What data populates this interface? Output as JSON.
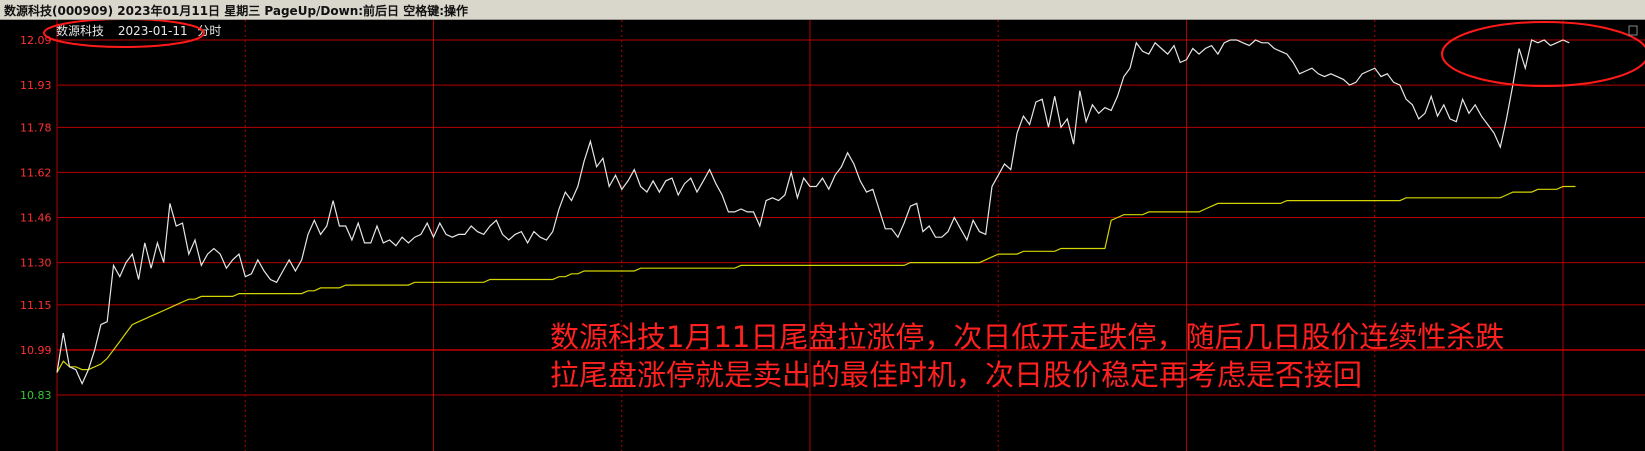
{
  "window": {
    "title": "数源科技(000909)  2023年01月11日 星期三 PageUp/Down:前后日 空格键:操作"
  },
  "chart_header": {
    "stock_name": "数源科技",
    "date": "2023-01-11",
    "mode": "分时"
  },
  "colors": {
    "price_line": "#e6e6e6",
    "avg_line": "#d4d400",
    "grid": "#b30000",
    "up_label": "#ff3232",
    "down_label": "#32c832",
    "annotation": "#ff2020",
    "circle": "#ff1a1a"
  },
  "annotation": {
    "line1": "数源科技1月11日尾盘拉涨停，次日低开走跌停，随后几日股价连续性杀跌",
    "line2": "拉尾盘涨停就是卖出的最佳时机，次日股价稳定再考虑是否接回"
  },
  "chart_data": {
    "type": "line",
    "title": "数源科技  2023-01-11 分时",
    "ylim": [
      10.68,
      12.09
    ],
    "prev_close": 10.99,
    "y_ticks": [
      12.09,
      11.93,
      11.78,
      11.62,
      11.46,
      11.3,
      11.15,
      10.99,
      10.83
    ],
    "y_tick_labels": [
      "12.09",
      "11.93",
      "11.78",
      "11.62",
      "11.46",
      "11.30",
      "11.15",
      "10.99",
      "10.83"
    ],
    "x_range": [
      0,
      240
    ],
    "grid": true,
    "series": [
      {
        "values": [
          10.91,
          11.05,
          10.93,
          10.92,
          10.87,
          10.92,
          10.99,
          11.08,
          11.09,
          11.29,
          11.25,
          11.3,
          11.33,
          11.24,
          11.37,
          11.28,
          11.37,
          11.3,
          11.51,
          11.43,
          11.44,
          11.33,
          11.38,
          11.29,
          11.33,
          11.35,
          11.33,
          11.28,
          11.31,
          11.33,
          11.25,
          11.26,
          11.31,
          11.27,
          11.24,
          11.23,
          11.27,
          11.31,
          11.27,
          11.31,
          11.4,
          11.45,
          11.4,
          11.43,
          11.52,
          11.43,
          11.43,
          11.38,
          11.44,
          11.37,
          11.37,
          11.43,
          11.37,
          11.38,
          11.36,
          11.39,
          11.37,
          11.39,
          11.4,
          11.44,
          11.39,
          11.44,
          11.4,
          11.39,
          11.4,
          11.4,
          11.43,
          11.41,
          11.4,
          11.43,
          11.45,
          11.4,
          11.38,
          11.4,
          11.41,
          11.37,
          11.41,
          11.39,
          11.38,
          11.41,
          11.49,
          11.55,
          11.52,
          11.57,
          11.66,
          11.73,
          11.64,
          11.67,
          11.57,
          11.61,
          11.56,
          11.59,
          11.63,
          11.57,
          11.55,
          11.59,
          11.55,
          11.59,
          11.6,
          11.54,
          11.58,
          11.6,
          11.55,
          11.59,
          11.63,
          11.58,
          11.54,
          11.48,
          11.48,
          11.49,
          11.48,
          11.48,
          11.43,
          11.52,
          11.53,
          11.52,
          11.54,
          11.62,
          11.53,
          11.6,
          11.57,
          11.57,
          11.6,
          11.56,
          11.61,
          11.64,
          11.69,
          11.65,
          11.59,
          11.55,
          11.56,
          11.49,
          11.42,
          11.42,
          11.39,
          11.44,
          11.5,
          11.51,
          11.41,
          11.43,
          11.39,
          11.39,
          11.41,
          11.46,
          11.42,
          11.38,
          11.45,
          11.41,
          11.4,
          11.57,
          11.61,
          11.65,
          11.63,
          11.76,
          11.82,
          11.79,
          11.87,
          11.88,
          11.78,
          11.89,
          11.78,
          11.81,
          11.72,
          11.91,
          11.8,
          11.86,
          11.83,
          11.85,
          11.84,
          11.89,
          11.96,
          11.99,
          12.08,
          12.05,
          12.04,
          12.08,
          12.06,
          12.04,
          12.07,
          12.01,
          12.02,
          12.06,
          12.04,
          12.06,
          12.07,
          12.04,
          12.08,
          12.09,
          12.09,
          12.08,
          12.07,
          12.09,
          12.08,
          12.08,
          12.06,
          12.05,
          12.04,
          12.01,
          11.97,
          11.98,
          11.99,
          11.97,
          11.96,
          11.97,
          11.96,
          11.95,
          11.93,
          11.94,
          11.97,
          11.98,
          11.99,
          11.96,
          11.97,
          11.94,
          11.93,
          11.88,
          11.86,
          11.81,
          11.83,
          11.89,
          11.82,
          11.86,
          11.81,
          11.8,
          11.88,
          11.83,
          11.86,
          11.82,
          11.79,
          11.76,
          11.71,
          11.81,
          11.93,
          12.06,
          11.99,
          12.09,
          12.08,
          12.09,
          12.07,
          12.08,
          12.09,
          12.08
        ]
      },
      {
        "values": [
          10.91,
          10.95,
          10.93,
          10.93,
          10.92,
          10.92,
          10.93,
          10.94,
          10.96,
          10.99,
          11.02,
          11.05,
          11.08,
          11.09,
          11.1,
          11.11,
          11.12,
          11.13,
          11.14,
          11.15,
          11.16,
          11.17,
          11.17,
          11.18,
          11.18,
          11.18,
          11.18,
          11.18,
          11.18,
          11.19,
          11.19,
          11.19,
          11.19,
          11.19,
          11.19,
          11.19,
          11.19,
          11.19,
          11.19,
          11.19,
          11.2,
          11.2,
          11.21,
          11.21,
          11.21,
          11.21,
          11.22,
          11.22,
          11.22,
          11.22,
          11.22,
          11.22,
          11.22,
          11.22,
          11.22,
          11.22,
          11.22,
          11.23,
          11.23,
          11.23,
          11.23,
          11.23,
          11.23,
          11.23,
          11.23,
          11.23,
          11.23,
          11.23,
          11.23,
          11.24,
          11.24,
          11.24,
          11.24,
          11.24,
          11.24,
          11.24,
          11.24,
          11.24,
          11.24,
          11.24,
          11.25,
          11.25,
          11.26,
          11.26,
          11.27,
          11.27,
          11.27,
          11.27,
          11.27,
          11.27,
          11.27,
          11.27,
          11.27,
          11.28,
          11.28,
          11.28,
          11.28,
          11.28,
          11.28,
          11.28,
          11.28,
          11.28,
          11.28,
          11.28,
          11.28,
          11.28,
          11.28,
          11.28,
          11.28,
          11.29,
          11.29,
          11.29,
          11.29,
          11.29,
          11.29,
          11.29,
          11.29,
          11.29,
          11.29,
          11.29,
          11.29,
          11.29,
          11.29,
          11.29,
          11.29,
          11.29,
          11.29,
          11.29,
          11.29,
          11.29,
          11.29,
          11.29,
          11.29,
          11.29,
          11.29,
          11.29,
          11.3,
          11.3,
          11.3,
          11.3,
          11.3,
          11.3,
          11.3,
          11.3,
          11.3,
          11.3,
          11.3,
          11.3,
          11.31,
          11.32,
          11.33,
          11.33,
          11.33,
          11.33,
          11.34,
          11.34,
          11.34,
          11.34,
          11.34,
          11.34,
          11.35,
          11.35,
          11.35,
          11.35,
          11.35,
          11.35,
          11.35,
          11.35,
          11.45,
          11.46,
          11.47,
          11.47,
          11.47,
          11.47,
          11.48,
          11.48,
          11.48,
          11.48,
          11.48,
          11.48,
          11.48,
          11.48,
          11.48,
          11.49,
          11.5,
          11.51,
          11.51,
          11.51,
          11.51,
          11.51,
          11.51,
          11.51,
          11.51,
          11.51,
          11.51,
          11.51,
          11.52,
          11.52,
          11.52,
          11.52,
          11.52,
          11.52,
          11.52,
          11.52,
          11.52,
          11.52,
          11.52,
          11.52,
          11.52,
          11.52,
          11.52,
          11.52,
          11.52,
          11.52,
          11.52,
          11.53,
          11.53,
          11.53,
          11.53,
          11.53,
          11.53,
          11.53,
          11.53,
          11.53,
          11.53,
          11.53,
          11.53,
          11.53,
          11.53,
          11.53,
          11.53,
          11.54,
          11.55,
          11.55,
          11.55,
          11.55,
          11.56,
          11.56,
          11.56,
          11.56,
          11.57,
          11.57,
          11.57
        ]
      }
    ]
  }
}
